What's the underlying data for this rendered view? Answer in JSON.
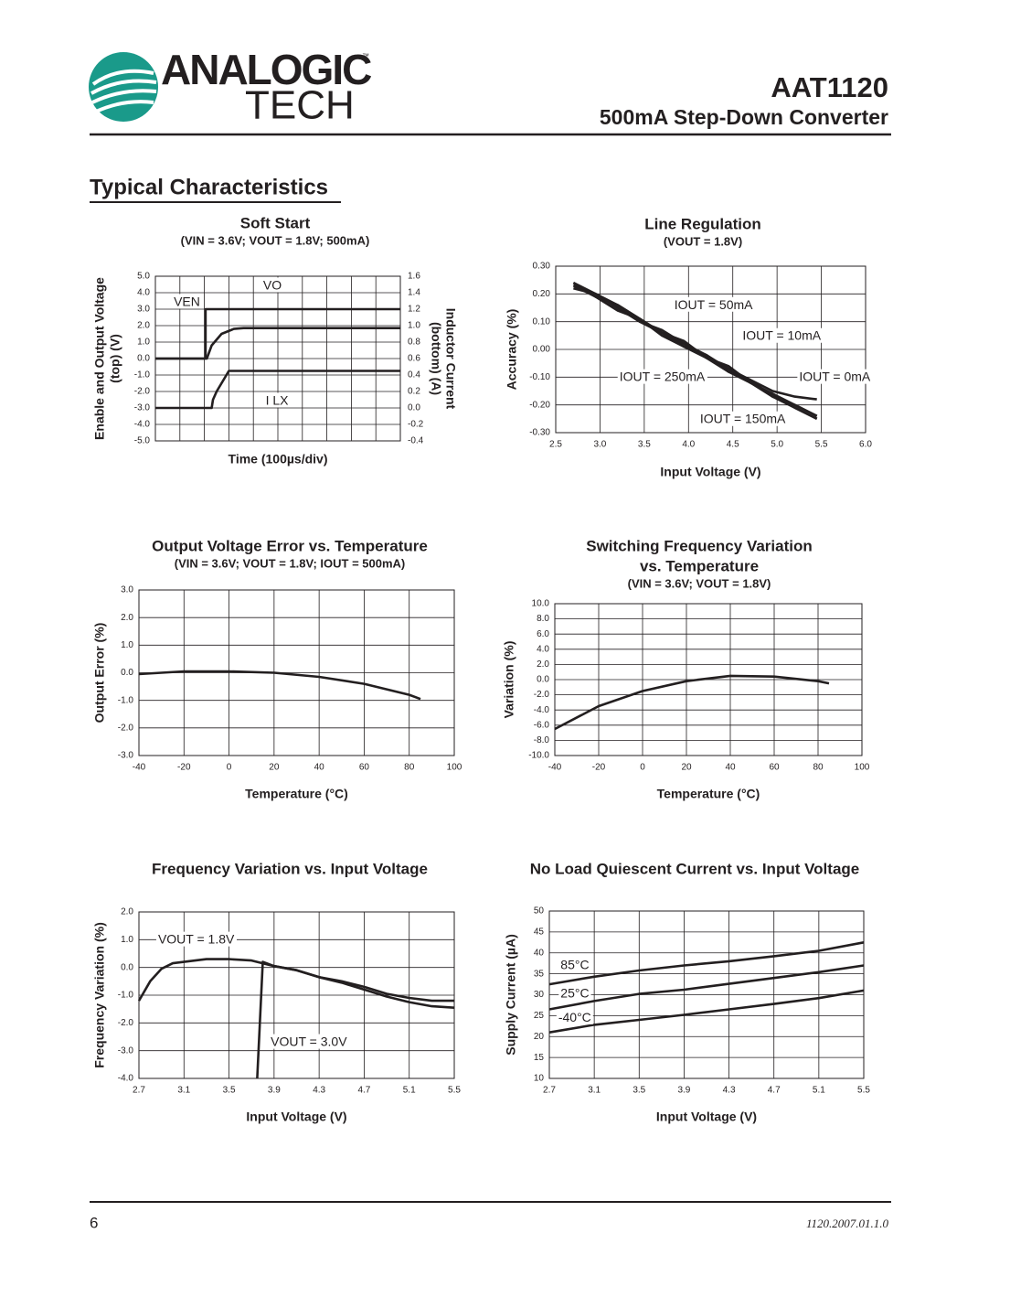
{
  "header": {
    "logo_top": "ANALOGIC",
    "logo_bottom": "TECH",
    "trademark": "™",
    "part": "AAT1120",
    "subtitle": "500mA Step-Down Converter"
  },
  "section": "Typical Characteristics",
  "footer": {
    "page": "6",
    "code": "1120.2007.01.1.0"
  },
  "chart_data": [
    {
      "type": "line",
      "title": "Soft Start",
      "subtitle": "(VIN = 3.6V; VOUT = 1.8V; 500mA)",
      "xlabel": "Time (100µs/div)",
      "ylabel": [
        "Enable and Output Voltage",
        "(top) (V)"
      ],
      "y2label": [
        "Inductor Current",
        "(bottom) (A)"
      ],
      "xlim": [
        0,
        10
      ],
      "ylim": [
        -5,
        5
      ],
      "y2lim": [
        -0.4,
        1.6
      ],
      "yticks": [
        {
          "value": 5,
          "label": "5.0"
        },
        {
          "value": 4,
          "label": "4.0"
        },
        {
          "value": 3,
          "label": "3.0"
        },
        {
          "value": 2,
          "label": "2.0"
        },
        {
          "value": 1,
          "label": "1.0"
        },
        {
          "value": 0,
          "label": "0.0"
        },
        {
          "value": -1,
          "label": "-1.0"
        },
        {
          "value": -2,
          "label": "-2.0"
        },
        {
          "value": -3,
          "label": "-3.0"
        },
        {
          "value": -4,
          "label": "-4.0"
        },
        {
          "value": -5,
          "label": "-5.0"
        }
      ],
      "y2ticks": [
        1.6,
        1.4,
        1.2,
        {
          "value": 1,
          "label": "1.0"
        },
        0.8,
        0.6,
        0.4,
        0.2,
        {
          "value": 0,
          "label": "0.0"
        },
        -0.2,
        -0.4
      ],
      "grid": true,
      "series": [
        {
          "color": "#231f20",
          "x": [
            0,
            2.05,
            2.05,
            10
          ],
          "values": [
            0,
            0,
            3.0,
            3.0
          ]
        },
        {
          "color": "#231f20",
          "x": [
            0,
            2.1,
            2.3,
            2.7,
            3.2,
            3.6,
            10
          ],
          "values": [
            0,
            0,
            0.8,
            1.5,
            1.8,
            1.85,
            1.85
          ]
        },
        {
          "color": "#231f20",
          "axis": "y2",
          "x": [
            0,
            2.3,
            2.35,
            2.5,
            3.0,
            3.5,
            10
          ],
          "values": [
            0,
            0,
            0.1,
            0.2,
            0.45,
            0.45,
            0.45
          ]
        }
      ],
      "annotations": [
        {
          "text": "VEN",
          "x": 0.75,
          "y": 3.4
        },
        {
          "text": "VO",
          "x": 4.4,
          "y": 4.4
        },
        {
          "text": "I LX",
          "x": 4.5,
          "y": -2.6
        }
      ]
    },
    {
      "type": "line",
      "title": "Line Regulation",
      "subtitle": "(VOUT = 1.8V)",
      "xlabel": "Input Voltage (V)",
      "ylabel": [
        "Accuracy (%)"
      ],
      "xlim": [
        2.5,
        6
      ],
      "ylim": [
        -0.3,
        0.3
      ],
      "xticks": [
        2.5,
        {
          "value": 3,
          "label": "3.0"
        },
        3.5,
        {
          "value": 4,
          "label": "4.0"
        },
        4.5,
        {
          "value": 5,
          "label": "5.0"
        },
        5.5,
        {
          "value": 6,
          "label": "6.0"
        }
      ],
      "yticks": [
        {
          "value": 0.3,
          "label": "0.30"
        },
        {
          "value": 0.2,
          "label": "0.20"
        },
        {
          "value": 0.1,
          "label": "0.10"
        },
        {
          "value": 0,
          "label": "0.00"
        },
        {
          "value": -0.1,
          "label": "-0.10"
        },
        {
          "value": -0.2,
          "label": "-0.20"
        },
        {
          "value": -0.3,
          "label": "-0.30"
        }
      ],
      "grid": true,
      "x": [
        2.7,
        2.95,
        3.2,
        3.45,
        3.7,
        3.95,
        4.2,
        4.45,
        4.7,
        4.95,
        5.2,
        5.45
      ],
      "series": [
        {
          "color": "#231f20",
          "values": [
            0.24,
            0.2,
            0.16,
            0.11,
            0.06,
            0.02,
            -0.02,
            -0.07,
            -0.11,
            -0.15,
            -0.17,
            -0.18
          ]
        },
        {
          "color": "#231f20",
          "values": [
            0.23,
            0.2,
            0.15,
            0.1,
            0.07,
            0.02,
            -0.03,
            -0.06,
            -0.12,
            -0.16,
            -0.2,
            -0.24
          ]
        },
        {
          "color": "#231f20",
          "values": [
            0.24,
            0.19,
            0.16,
            0.11,
            0.05,
            0.01,
            -0.02,
            -0.08,
            -0.11,
            -0.17,
            -0.21,
            -0.25
          ]
        },
        {
          "color": "#231f20",
          "values": [
            0.22,
            0.2,
            0.15,
            0.1,
            0.06,
            0.03,
            -0.03,
            -0.07,
            -0.12,
            -0.16,
            -0.21,
            -0.25
          ]
        },
        {
          "color": "#231f20",
          "values": [
            0.23,
            0.19,
            0.14,
            0.11,
            0.06,
            0.01,
            -0.03,
            -0.08,
            -0.12,
            -0.17,
            -0.2,
            -0.24
          ]
        }
      ],
      "annotations": [
        {
          "text": "IOUT = 50mA",
          "x": 3.84,
          "y": 0.158
        },
        {
          "text": "IOUT = 10mA",
          "x": 4.61,
          "y": 0.046
        },
        {
          "text": "IOUT = 250mA",
          "x": 3.22,
          "y": -0.102
        },
        {
          "text": "IOUT = 0mA",
          "x": 5.25,
          "y": -0.102
        },
        {
          "text": "IOUT = 150mA",
          "x": 4.13,
          "y": -0.254
        }
      ]
    },
    {
      "type": "line",
      "title": "Output Voltage Error vs. Temperature",
      "subtitle": "(VIN = 3.6V; VOUT = 1.8V; IOUT = 500mA)",
      "xlabel": "Temperature (°C)",
      "ylabel": [
        "Output Error (%)"
      ],
      "xlim": [
        -40,
        100
      ],
      "ylim": [
        -3,
        3
      ],
      "xticks": [
        -40,
        -20,
        0,
        20,
        40,
        60,
        80,
        100
      ],
      "yticks": [
        {
          "value": 3,
          "label": "3.0"
        },
        {
          "value": 2,
          "label": "2.0"
        },
        {
          "value": 1,
          "label": "1.0"
        },
        {
          "value": 0,
          "label": "0.0"
        },
        {
          "value": -1,
          "label": "-1.0"
        },
        {
          "value": -2,
          "label": "-2.0"
        },
        {
          "value": -3,
          "label": "-3.0"
        }
      ],
      "grid": true,
      "x": [
        -40,
        -20,
        0,
        20,
        40,
        60,
        80,
        85
      ],
      "series": [
        {
          "color": "#231f20",
          "values": [
            -0.05,
            0.05,
            0.05,
            0,
            -0.15,
            -0.4,
            -0.8,
            -0.95
          ]
        }
      ],
      "annotations": []
    },
    {
      "type": "line",
      "title": [
        "Switching Frequency Variation",
        "vs. Temperature"
      ],
      "subtitle": "(VIN = 3.6V; VOUT = 1.8V)",
      "xlabel": "Temperature (°C)",
      "ylabel": [
        "Variation (%)"
      ],
      "xlim": [
        -40,
        100
      ],
      "ylim": [
        -10,
        10
      ],
      "xticks": [
        -40,
        -20,
        0,
        20,
        40,
        60,
        80,
        100
      ],
      "yticks": [
        {
          "value": 10,
          "label": "10.0"
        },
        {
          "value": 8,
          "label": "8.0"
        },
        {
          "value": 6,
          "label": "6.0"
        },
        {
          "value": 4,
          "label": "4.0"
        },
        {
          "value": 2,
          "label": "2.0"
        },
        {
          "value": 0,
          "label": "0.0"
        },
        {
          "value": -2,
          "label": "-2.0"
        },
        {
          "value": -4,
          "label": "-4.0"
        },
        {
          "value": -6,
          "label": "-6.0"
        },
        {
          "value": -8,
          "label": "-8.0"
        },
        {
          "value": -10,
          "label": "-10.0"
        }
      ],
      "grid": true,
      "x": [
        -40,
        -20,
        0,
        20,
        40,
        60,
        80,
        85
      ],
      "series": [
        {
          "color": "#231f20",
          "values": [
            -6.5,
            -3.5,
            -1.5,
            -0.2,
            0.5,
            0.4,
            -0.2,
            -0.5
          ]
        }
      ],
      "annotations": []
    },
    {
      "type": "line",
      "title": "Frequency Variation vs. Input Voltage",
      "xlabel": "Input Voltage (V)",
      "ylabel": [
        "Frequency Variation (%)"
      ],
      "xlim": [
        2.7,
        5.5
      ],
      "ylim": [
        -4,
        2
      ],
      "xticks": [
        2.7,
        3.1,
        3.5,
        3.9,
        4.3,
        4.7,
        5.1,
        5.5
      ],
      "yticks": [
        {
          "value": 2,
          "label": "2.0"
        },
        {
          "value": 1,
          "label": "1.0"
        },
        {
          "value": 0,
          "label": "0.0"
        },
        {
          "value": -1,
          "label": "-1.0"
        },
        {
          "value": -2,
          "label": "-2.0"
        },
        {
          "value": -3,
          "label": "-3.0"
        },
        {
          "value": -4,
          "label": "-4.0"
        }
      ],
      "grid": true,
      "series": [
        {
          "color": "#231f20",
          "x": [
            2.7,
            2.8,
            2.9,
            3.0,
            3.1,
            3.3,
            3.5,
            3.7,
            3.9,
            4.1,
            4.3,
            4.5,
            4.7,
            4.9,
            5.1,
            5.3,
            5.5
          ],
          "values": [
            -1.2,
            -0.5,
            -0.05,
            0.15,
            0.2,
            0.3,
            0.3,
            0.25,
            0.05,
            -0.1,
            -0.35,
            -0.5,
            -0.7,
            -0.95,
            -1.1,
            -1.2,
            -1.2
          ]
        },
        {
          "color": "#231f20",
          "x": [
            3.75,
            3.8,
            3.9,
            4.1,
            4.3,
            4.5,
            4.7,
            4.9,
            5.1,
            5.3,
            5.5
          ],
          "values": [
            -4,
            0.2,
            0.05,
            -0.1,
            -0.35,
            -0.55,
            -0.8,
            -1.05,
            -1.25,
            -1.4,
            -1.45
          ]
        }
      ],
      "annotations": [
        {
          "text": "VOUT = 1.8V",
          "x": 2.87,
          "y": 0.98
        },
        {
          "text": "VOUT = 3.0V",
          "x": 3.87,
          "y": -2.71
        }
      ]
    },
    {
      "type": "line",
      "title": "No Load Quiescent Current vs. Input Voltage",
      "xlabel": "Input Voltage (V)",
      "ylabel": [
        "Supply Current (µA)"
      ],
      "xlim": [
        2.7,
        5.5
      ],
      "ylim": [
        10,
        50
      ],
      "xticks": [
        2.7,
        3.1,
        3.5,
        3.9,
        4.3,
        4.7,
        5.1,
        5.5
      ],
      "yticks": [
        10,
        15,
        20,
        25,
        30,
        35,
        40,
        45,
        50
      ],
      "grid": true,
      "x": [
        2.7,
        3.1,
        3.5,
        3.9,
        4.3,
        4.7,
        5.1,
        5.5
      ],
      "series": [
        {
          "color": "#231f20",
          "values": [
            32.5,
            34.3,
            35.8,
            37,
            38,
            39.2,
            40.5,
            42.5
          ]
        },
        {
          "color": "#231f20",
          "values": [
            26.5,
            28.5,
            30.2,
            31.2,
            32.6,
            34,
            35.4,
            37
          ]
        },
        {
          "color": "#231f20",
          "values": [
            21,
            22.8,
            24,
            25.2,
            26.5,
            27.8,
            29.2,
            31
          ]
        }
      ],
      "annotations": [
        {
          "text": "85°C",
          "x": 2.8,
          "y": 36.9
        },
        {
          "text": "25°C",
          "x": 2.8,
          "y": 30.1
        },
        {
          "text": "-40°C",
          "x": 2.78,
          "y": 24.4
        }
      ]
    }
  ]
}
